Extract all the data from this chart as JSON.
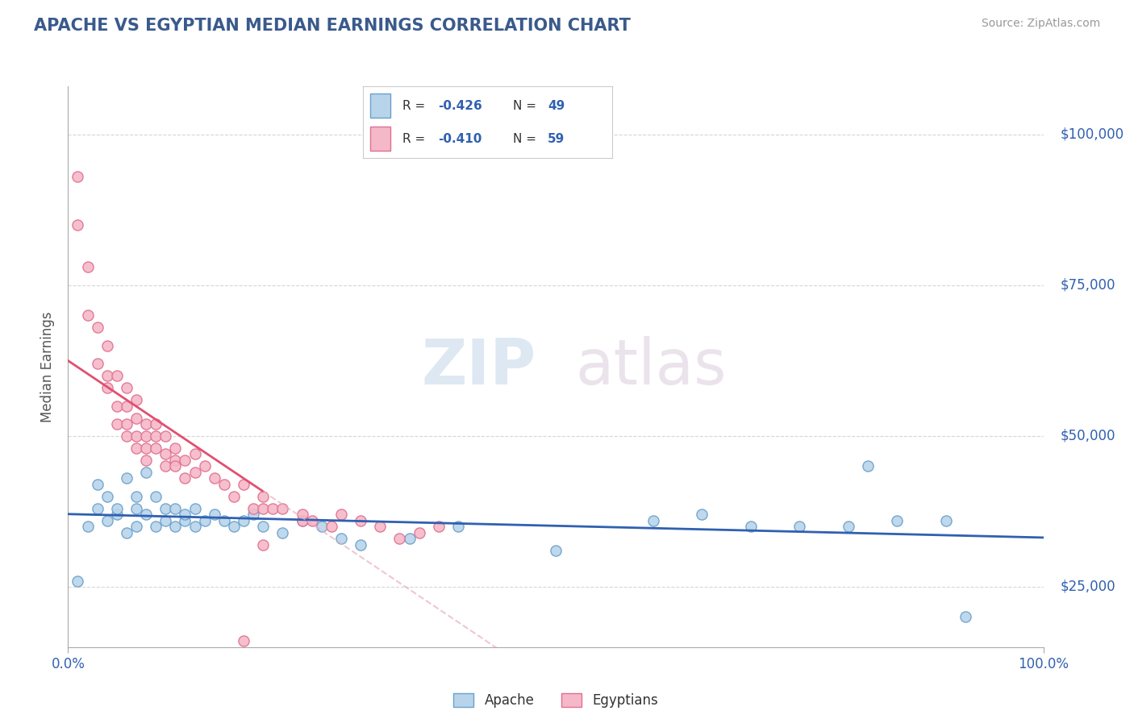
{
  "title": "APACHE VS EGYPTIAN MEDIAN EARNINGS CORRELATION CHART",
  "title_color": "#3a5a8c",
  "ylabel": "Median Earnings",
  "source_text": "Source: ZipAtlas.com",
  "watermark_zip": "ZIP",
  "watermark_atlas": "atlas",
  "xlim": [
    0.0,
    1.0
  ],
  "ylim": [
    15000,
    108000
  ],
  "yticks": [
    25000,
    50000,
    75000,
    100000
  ],
  "ytick_labels": [
    "$25,000",
    "$50,000",
    "$75,000",
    "$100,000"
  ],
  "xtick_labels": [
    "0.0%",
    "100.0%"
  ],
  "apache_color": "#b8d4ea",
  "apache_edge_color": "#6aa0cc",
  "egyptian_color": "#f5b8c8",
  "egyptian_edge_color": "#e07090",
  "apache_line_color": "#3060b0",
  "egyptian_line_color": "#e05070",
  "egyptian_dashed_color": "#e8b0c0",
  "background_color": "#ffffff",
  "grid_color": "#cccccc",
  "apache_scatter_x": [
    0.01,
    0.02,
    0.03,
    0.03,
    0.04,
    0.04,
    0.05,
    0.05,
    0.06,
    0.06,
    0.07,
    0.07,
    0.07,
    0.08,
    0.08,
    0.09,
    0.09,
    0.1,
    0.1,
    0.11,
    0.11,
    0.12,
    0.12,
    0.13,
    0.13,
    0.14,
    0.15,
    0.16,
    0.17,
    0.18,
    0.19,
    0.2,
    0.22,
    0.24,
    0.26,
    0.28,
    0.3,
    0.35,
    0.4,
    0.5,
    0.6,
    0.65,
    0.7,
    0.75,
    0.8,
    0.82,
    0.85,
    0.9,
    0.92
  ],
  "apache_scatter_y": [
    26000,
    35000,
    38000,
    42000,
    36000,
    40000,
    37000,
    38000,
    34000,
    43000,
    38000,
    35000,
    40000,
    37000,
    44000,
    35000,
    40000,
    36000,
    38000,
    35000,
    38000,
    36000,
    37000,
    35000,
    38000,
    36000,
    37000,
    36000,
    35000,
    36000,
    37000,
    35000,
    34000,
    36000,
    35000,
    33000,
    32000,
    33000,
    35000,
    31000,
    36000,
    37000,
    35000,
    35000,
    35000,
    45000,
    36000,
    36000,
    20000
  ],
  "egyptian_scatter_x": [
    0.01,
    0.01,
    0.02,
    0.02,
    0.03,
    0.03,
    0.04,
    0.04,
    0.04,
    0.05,
    0.05,
    0.05,
    0.06,
    0.06,
    0.06,
    0.06,
    0.07,
    0.07,
    0.07,
    0.07,
    0.08,
    0.08,
    0.08,
    0.08,
    0.09,
    0.09,
    0.09,
    0.1,
    0.1,
    0.1,
    0.11,
    0.11,
    0.11,
    0.12,
    0.12,
    0.13,
    0.13,
    0.14,
    0.15,
    0.16,
    0.17,
    0.18,
    0.19,
    0.2,
    0.2,
    0.21,
    0.22,
    0.24,
    0.24,
    0.25,
    0.27,
    0.28,
    0.3,
    0.32,
    0.34,
    0.36,
    0.38,
    0.18,
    0.2
  ],
  "egyptian_scatter_y": [
    93000,
    85000,
    78000,
    70000,
    68000,
    62000,
    65000,
    58000,
    60000,
    60000,
    55000,
    52000,
    58000,
    55000,
    52000,
    50000,
    56000,
    53000,
    50000,
    48000,
    52000,
    50000,
    48000,
    46000,
    52000,
    50000,
    48000,
    50000,
    47000,
    45000,
    48000,
    46000,
    45000,
    46000,
    43000,
    47000,
    44000,
    45000,
    43000,
    42000,
    40000,
    42000,
    38000,
    38000,
    40000,
    38000,
    38000,
    36000,
    37000,
    36000,
    35000,
    37000,
    36000,
    35000,
    33000,
    34000,
    35000,
    16000,
    32000
  ]
}
